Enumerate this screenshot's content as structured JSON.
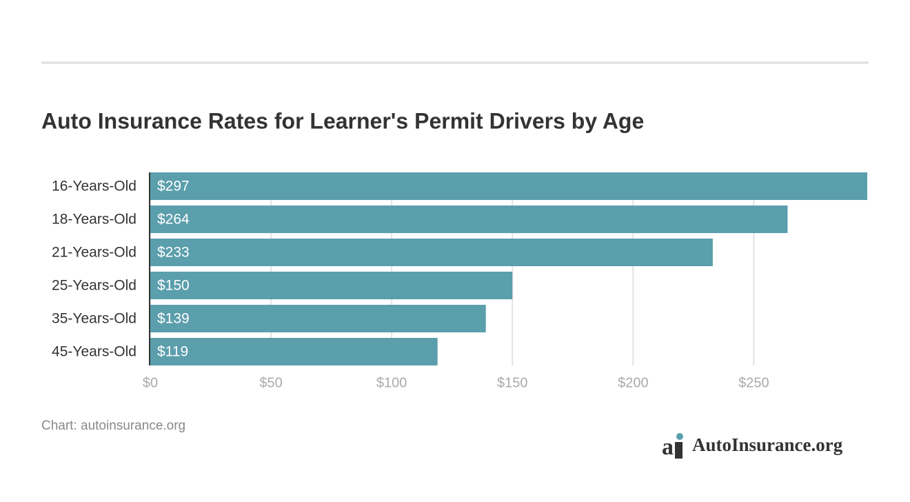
{
  "chart_data": {
    "type": "bar",
    "orientation": "horizontal",
    "title": "Auto Insurance Rates for Learner's Permit Drivers by Age",
    "source": "Chart: autoinsurance.org",
    "categories": [
      "16-Years-Old",
      "18-Years-Old",
      "21-Years-Old",
      "25-Years-Old",
      "35-Years-Old",
      "45-Years-Old"
    ],
    "values": [
      297,
      264,
      233,
      150,
      139,
      119
    ],
    "value_labels": [
      "$297",
      "$264",
      "$233",
      "$150",
      "$139",
      "$119"
    ],
    "color": "#5b9eac",
    "xlim": [
      0,
      297
    ],
    "xticks": [
      {
        "value": 0,
        "label": "$0"
      },
      {
        "value": 50,
        "label": "$50"
      },
      {
        "value": 100,
        "label": "$100"
      },
      {
        "value": 150,
        "label": "$150"
      },
      {
        "value": 200,
        "label": "$200"
      },
      {
        "value": 250,
        "label": "$250"
      }
    ],
    "grid": true
  },
  "logo": {
    "text": "AutoInsurance.org"
  }
}
